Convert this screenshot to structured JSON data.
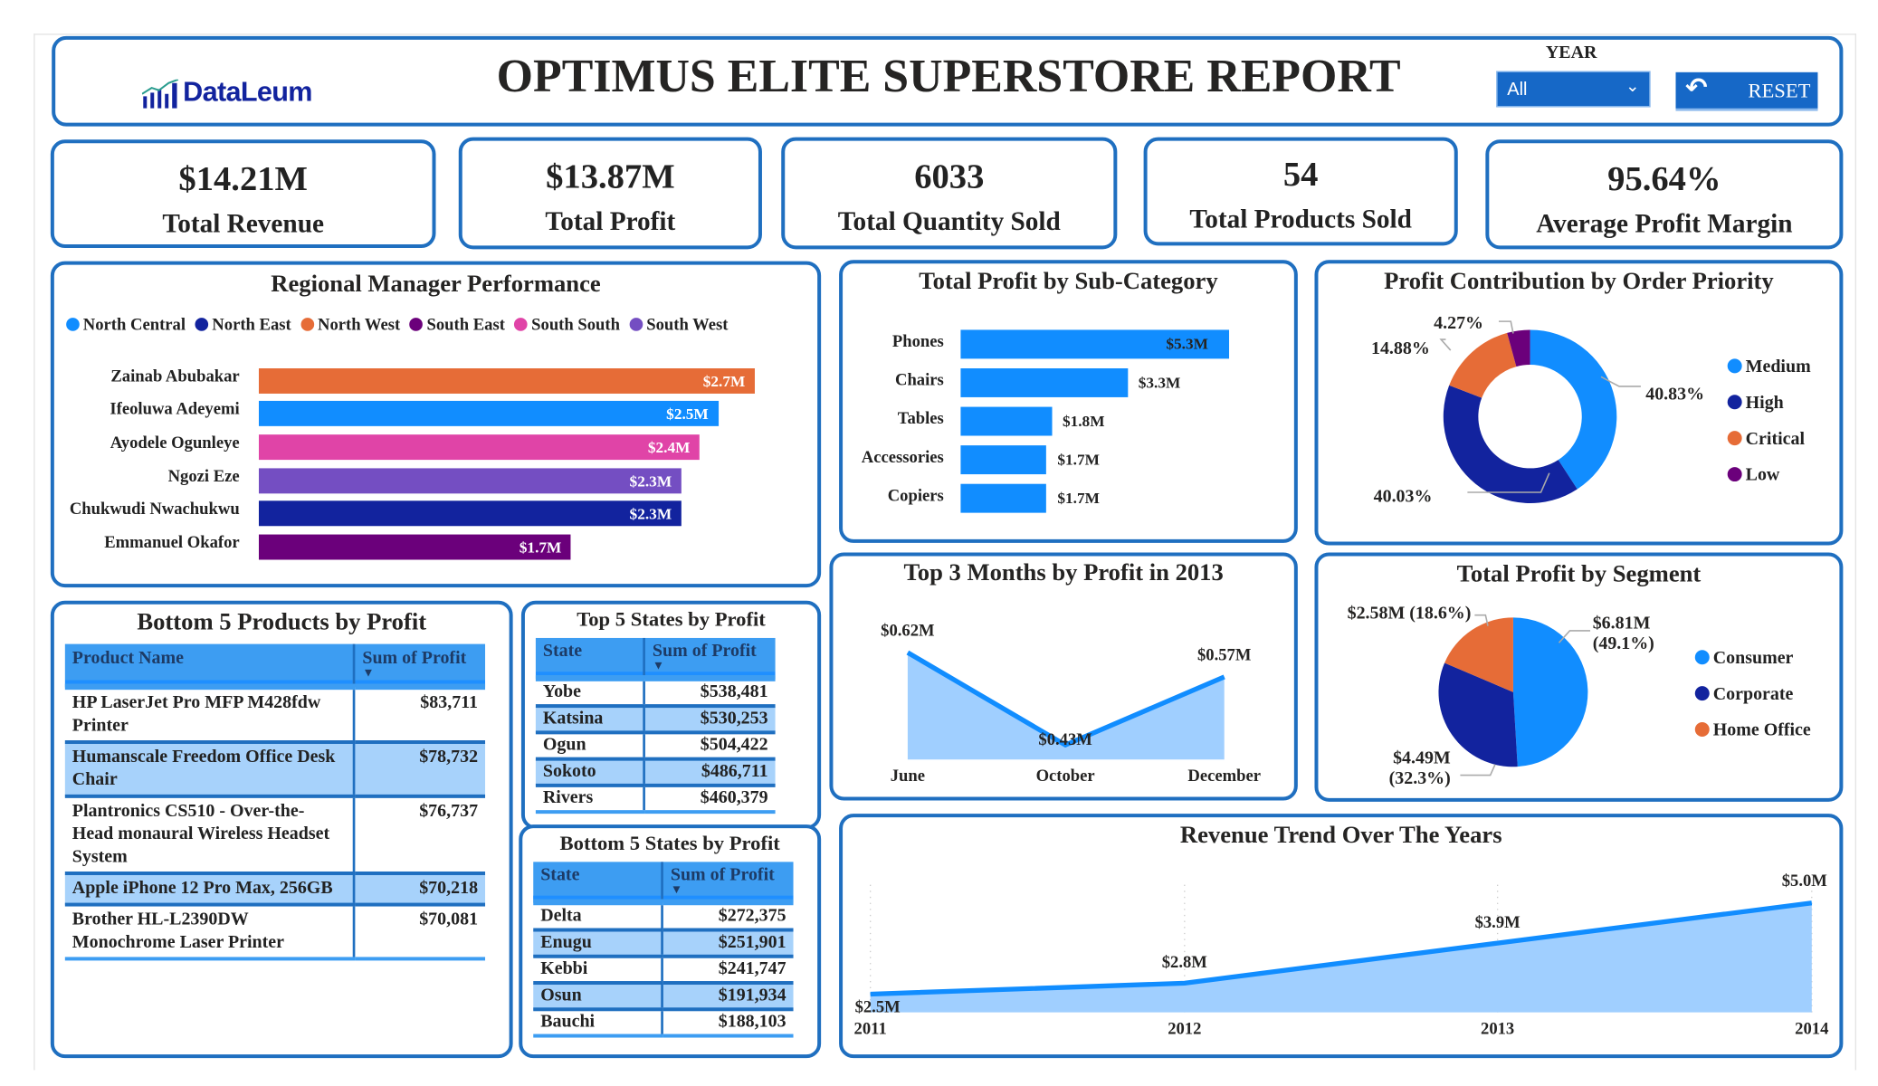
{
  "header": {
    "logo_text": "DataLeum",
    "title": "OPTIMUS ELITE SUPERSTORE REPORT",
    "year_label": "YEAR",
    "year_value": "All",
    "reset_label": "RESET"
  },
  "kpis": [
    {
      "value": "$14.21M",
      "label": "Total Revenue"
    },
    {
      "value": "$13.87M",
      "label": "Total Profit"
    },
    {
      "value": "6033",
      "label": "Total Quantity Sold"
    },
    {
      "value": "54",
      "label": "Total Products Sold"
    },
    {
      "value": "95.64%",
      "label": "Average Profit Margin"
    }
  ],
  "colors": {
    "blue": "#118DFF",
    "navy": "#12239E",
    "orange": "#E66C37",
    "purple": "#6B007B",
    "pink": "#E044A7",
    "violet": "#744EC2",
    "light_fill": "#A0CFFF",
    "border": "#1F6FC0"
  },
  "tables": {
    "bottom_products": {
      "title": "Bottom 5 Products by Profit",
      "columns": [
        "Product Name",
        "Sum of Profit"
      ],
      "rows": [
        [
          "HP LaserJet Pro MFP M428fdw Printer",
          "$83,711"
        ],
        [
          "Humanscale Freedom Office Desk Chair",
          "$78,732"
        ],
        [
          "Plantronics CS510 - Over-the-Head monaural Wireless Headset System",
          "$76,737"
        ],
        [
          "Apple iPhone 12 Pro Max, 256GB",
          "$70,218"
        ],
        [
          "Brother HL-L2390DW Monochrome Laser Printer",
          "$70,081"
        ]
      ]
    },
    "top_states": {
      "title": "Top 5 States by Profit",
      "columns": [
        "State",
        "Sum of Profit"
      ],
      "rows": [
        [
          "Yobe",
          "$538,481"
        ],
        [
          "Katsina",
          "$530,253"
        ],
        [
          "Ogun",
          "$504,422"
        ],
        [
          "Sokoto",
          "$486,711"
        ],
        [
          "Rivers",
          "$460,379"
        ]
      ]
    },
    "bottom_states": {
      "title": "Bottom 5 States by Profit",
      "columns": [
        "State",
        "Sum of Profit"
      ],
      "rows": [
        [
          "Delta",
          "$272,375"
        ],
        [
          "Enugu",
          "$251,901"
        ],
        [
          "Kebbi",
          "$241,747"
        ],
        [
          "Osun",
          "$191,934"
        ],
        [
          "Bauchi",
          "$188,103"
        ]
      ]
    }
  },
  "chart_data": [
    {
      "type": "bar",
      "orientation": "horizontal",
      "title": "Regional Manager Performance",
      "legend": [
        "North Central",
        "North East",
        "North West",
        "South East",
        "South South",
        "South West"
      ],
      "legend_colors": [
        "#118DFF",
        "#12239E",
        "#E66C37",
        "#6B007B",
        "#E044A7",
        "#744EC2"
      ],
      "legend_position": "top-left",
      "categories": [
        "Zainab Abubakar",
        "Ifeoluwa Adeyemi",
        "Ayodele Ogunleye",
        "Ngozi Eze",
        "Chukwudi Nwachukwu",
        "Emmanuel Okafor"
      ],
      "regions": [
        "North West",
        "North Central",
        "South South",
        "South West",
        "North East",
        "South East"
      ],
      "values": [
        2.7,
        2.5,
        2.4,
        2.3,
        2.3,
        1.7
      ],
      "labels": [
        "$2.7M",
        "$2.5M",
        "$2.4M",
        "$2.3M",
        "$2.3M",
        "$1.7M"
      ],
      "unit": "$M"
    },
    {
      "type": "bar",
      "orientation": "horizontal",
      "title": "Total Profit by Sub-Category",
      "categories": [
        "Phones",
        "Chairs",
        "Tables",
        "Accessories",
        "Copiers"
      ],
      "values": [
        5.3,
        3.3,
        1.8,
        1.7,
        1.7
      ],
      "labels": [
        "$5.3M",
        "$3.3M",
        "$1.8M",
        "$1.7M",
        "$1.7M"
      ],
      "color": "#118DFF",
      "unit": "$M"
    },
    {
      "type": "pie",
      "variant": "donut",
      "title": "Profit Contribution by Order Priority",
      "categories": [
        "Medium",
        "High",
        "Critical",
        "Low"
      ],
      "values": [
        40.83,
        40.03,
        14.88,
        4.27
      ],
      "labels": [
        "40.83%",
        "40.03%",
        "14.88%",
        "4.27%"
      ],
      "colors": [
        "#118DFF",
        "#12239E",
        "#E66C37",
        "#6B007B"
      ],
      "legend_position": "right"
    },
    {
      "type": "area",
      "title": "Top 3 Months by Profit in 2013",
      "categories": [
        "June",
        "October",
        "December"
      ],
      "values": [
        0.62,
        0.43,
        0.57
      ],
      "labels": [
        "$0.62M",
        "$0.43M",
        "$0.57M"
      ],
      "ylim": [
        0.4,
        0.65
      ],
      "unit": "$M"
    },
    {
      "type": "pie",
      "title": "Total Profit by Segment",
      "categories": [
        "Consumer",
        "Corporate",
        "Home Office"
      ],
      "values": [
        6.81,
        4.49,
        2.58
      ],
      "labels": [
        "$6.81M (49.1%)",
        "$4.49M (32.3%)",
        "$2.58M (18.6%)"
      ],
      "colors": [
        "#118DFF",
        "#12239E",
        "#E66C37"
      ],
      "legend_position": "right"
    },
    {
      "type": "area",
      "title": "Revenue Trend Over The Years",
      "categories": [
        "2011",
        "2012",
        "2013",
        "2014"
      ],
      "values": [
        2.5,
        2.8,
        3.9,
        5.0
      ],
      "labels": [
        "$2.5M",
        "$2.8M",
        "$3.9M",
        "$5.0M"
      ],
      "ylim": [
        2.0,
        5.5
      ],
      "grid": "vertical-dotted",
      "unit": "$M"
    }
  ]
}
